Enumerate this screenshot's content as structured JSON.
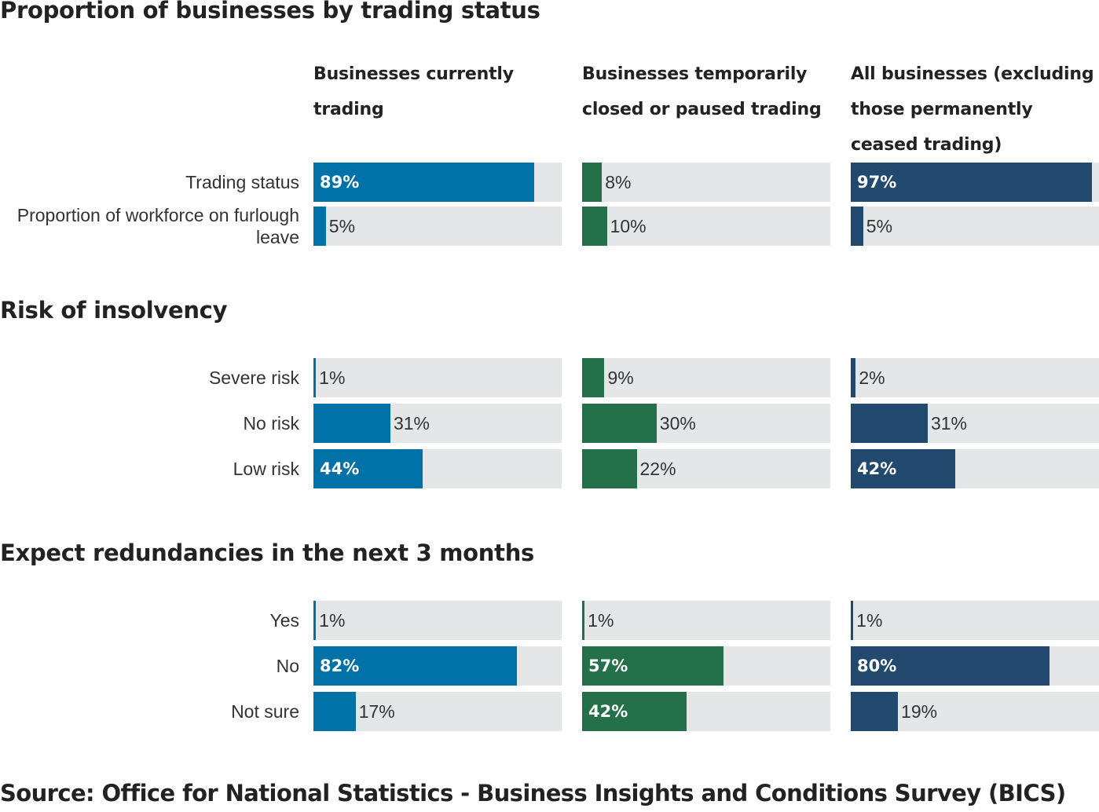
{
  "colors": {
    "currently_trading": "#0072a8",
    "temporarily_closed": "#24704a",
    "all_businesses": "#224a6e",
    "track": "#e5e6e7"
  },
  "source": "Source: Office for National Statistics - Business Insights and Conditions Survey (BICS)",
  "chart_data": {
    "type": "bar",
    "orientation": "horizontal",
    "unit": "%",
    "xlim": [
      0,
      100
    ],
    "columns": [
      "Businesses currently trading",
      "Businesses temporarily closed or paused trading",
      "All businesses (excluding those permanently ceased trading)"
    ],
    "sections": [
      {
        "title": "Proportion of businesses by trading status",
        "categories": [
          "Trading status",
          "Proportion of workforce on furlough leave"
        ],
        "series": [
          {
            "values": [
              89,
              5
            ]
          },
          {
            "values": [
              8,
              10
            ]
          },
          {
            "values": [
              97,
              5
            ]
          }
        ]
      },
      {
        "title": "Risk of insolvency",
        "categories": [
          "Severe risk",
          "No risk",
          "Low risk"
        ],
        "series": [
          {
            "values": [
              1,
              31,
              44
            ]
          },
          {
            "values": [
              9,
              30,
              22
            ]
          },
          {
            "values": [
              2,
              31,
              42
            ]
          }
        ]
      },
      {
        "title": "Expect redundancies in the next 3 months",
        "categories": [
          "Yes",
          "No",
          "Not sure"
        ],
        "series": [
          {
            "values": [
              1,
              82,
              17
            ]
          },
          {
            "values": [
              1,
              57,
              42
            ]
          },
          {
            "values": [
              1,
              80,
              19
            ]
          }
        ]
      }
    ]
  }
}
